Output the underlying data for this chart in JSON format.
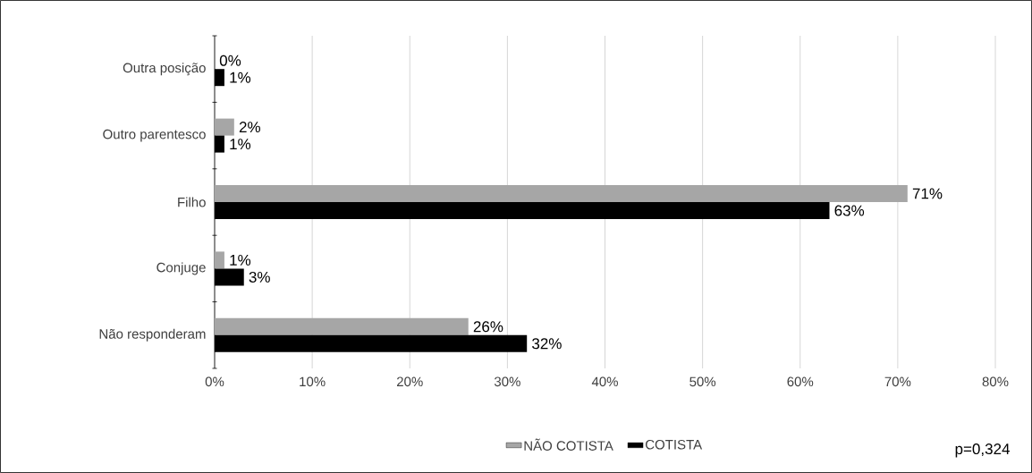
{
  "chart_data": {
    "type": "bar",
    "orientation": "horizontal",
    "categories": [
      "Outra posição",
      "Outro parentesco",
      "Filho",
      "Conjuge",
      "Não responderam"
    ],
    "series": [
      {
        "name": "NÃO COTISTA",
        "color": "#a6a6a6",
        "values": [
          0,
          2,
          71,
          1,
          26
        ],
        "value_labels": [
          "0%",
          "2%",
          "71%",
          "1%",
          "26%"
        ]
      },
      {
        "name": "COTISTA",
        "color": "#000000",
        "values": [
          1,
          1,
          63,
          3,
          32
        ],
        "value_labels": [
          "1%",
          "1%",
          "63%",
          "3%",
          "32%"
        ]
      }
    ],
    "xlim": [
      0,
      80
    ],
    "xticks": [
      {
        "value": 0,
        "label": "0%"
      },
      {
        "value": 10,
        "label": "10%"
      },
      {
        "value": 20,
        "label": "20%"
      },
      {
        "value": 30,
        "label": "30%"
      },
      {
        "value": 40,
        "label": "40%"
      },
      {
        "value": 50,
        "label": "50%"
      },
      {
        "value": 60,
        "label": "60%"
      },
      {
        "value": 70,
        "label": "70%"
      },
      {
        "value": 80,
        "label": "80%"
      }
    ],
    "grid": "x",
    "legend": "bottom",
    "annotations": [
      "p=0,324"
    ]
  }
}
